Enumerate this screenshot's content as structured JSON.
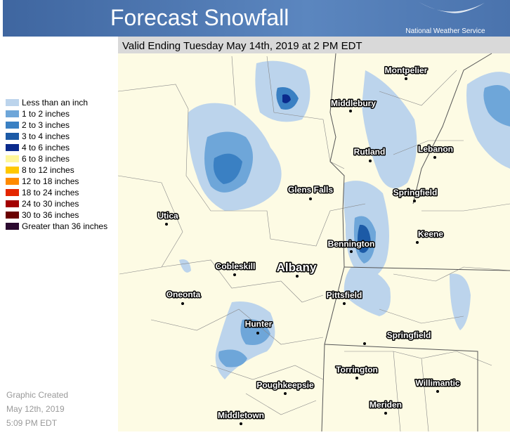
{
  "header": {
    "title": "Forecast Snowfall",
    "agency": "National Weather Service"
  },
  "subtitle": "Valid Ending Tuesday May 14th, 2019 at 2 PM EDT",
  "legend": [
    {
      "label": "Less than an inch",
      "color": "#bcd4ec"
    },
    {
      "label": "1 to 2 inches",
      "color": "#6ea6d9"
    },
    {
      "label": "2 to 3 inches",
      "color": "#3a80c3"
    },
    {
      "label": "3 to 4 inches",
      "color": "#1c5aa6"
    },
    {
      "label": "4 to 6 inches",
      "color": "#0a2a8c"
    },
    {
      "label": "6 to 8 inches",
      "color": "#fff79a"
    },
    {
      "label": "8 to 12 inches",
      "color": "#ffc800"
    },
    {
      "label": "12 to 18 inches",
      "color": "#ff8a00"
    },
    {
      "label": "18 to 24 inches",
      "color": "#e42600"
    },
    {
      "label": "24 to 30 inches",
      "color": "#a30000"
    },
    {
      "label": "30 to 36 inches",
      "color": "#6a0000"
    },
    {
      "label": "Greater than 36 inches",
      "color": "#2c0a30"
    }
  ],
  "cities": [
    "Montpelier",
    "Middlebury",
    "Rutland",
    "Lebanon",
    "Glens Falls",
    "Springfield",
    "Utica",
    "Keene",
    "Bennington",
    "Albany",
    "Cobleskill",
    "Oneonta",
    "Pittsfield",
    "Hunter",
    "Springfield",
    "Torrington",
    "Poughkeepsie",
    "Willimantic",
    "Meriden",
    "Middletown"
  ],
  "footer": [
    "Graphic Created",
    "May 12th, 2019",
    "5:09 PM EDT"
  ]
}
